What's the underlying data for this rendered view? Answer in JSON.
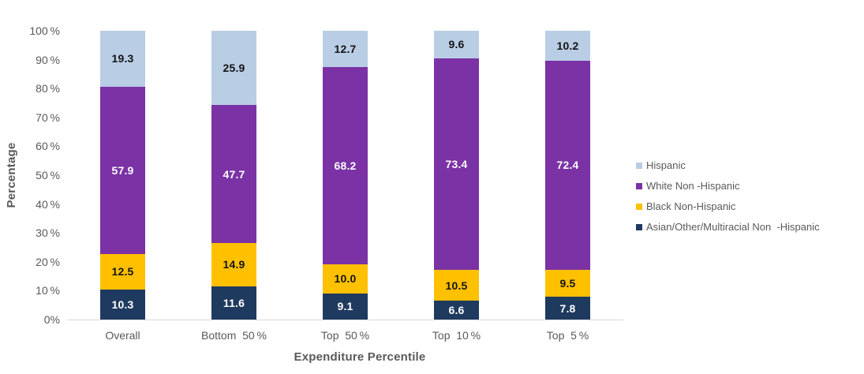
{
  "chart_data": {
    "type": "bar",
    "stacked": true,
    "orientation": "vertical",
    "background": "#FFFFFF",
    "grid": false,
    "xlabel": "Expenditure Percentile",
    "ylabel": "Percentage",
    "ylim": [
      0,
      100
    ],
    "ytick_values": [
      0,
      10,
      20,
      30,
      40,
      50,
      60,
      70,
      80,
      90,
      100
    ],
    "ytick_labels": [
      "0%",
      "10 %",
      "20 %",
      "30 %",
      "40 %",
      "50 %",
      "60 %",
      "70 %",
      "80 %",
      "90 %",
      "100 %"
    ],
    "categories": [
      "Overall",
      "Bottom  50 %",
      "Top  50 %",
      "Top  10 %",
      "Top  5 %"
    ],
    "series": [
      {
        "name": "Asian/Other/Multiracial Non  -Hispanic",
        "color": "#1F3A5F",
        "label_color": "#FFFFFF",
        "values": [
          10.3,
          11.6,
          9.1,
          6.6,
          7.8
        ]
      },
      {
        "name": "Black Non-Hispanic",
        "color": "#FFC000",
        "label_color": "#141414",
        "values": [
          12.5,
          14.9,
          10.0,
          10.5,
          9.5
        ]
      },
      {
        "name": "White Non -Hispanic",
        "color": "#7A32A5",
        "label_color": "#FFFFFF",
        "values": [
          57.9,
          47.7,
          68.2,
          73.4,
          72.4
        ]
      },
      {
        "name": "Hispanic",
        "color": "#B9CDE5",
        "label_color": "#141414",
        "values": [
          19.3,
          25.9,
          12.7,
          9.6,
          10.2
        ]
      }
    ],
    "legend_position": "right",
    "legend_order_top_to_bottom": [
      "Hispanic",
      "White Non -Hispanic",
      "Black Non-Hispanic",
      "Asian/Other/Multiracial Non  -Hispanic"
    ],
    "value_label_decimals": 1,
    "axis_line_color": "#D9D9D9",
    "text_color": "#595959"
  }
}
